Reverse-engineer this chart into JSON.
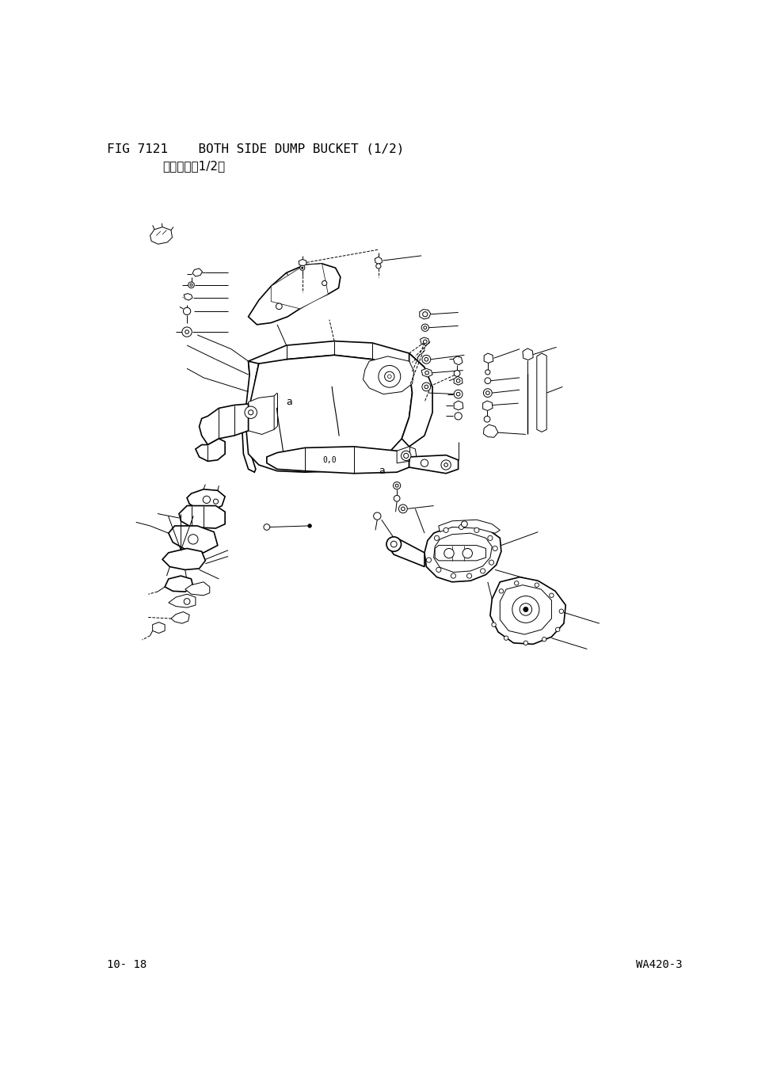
{
  "title_line1": "FIG 7121    BOTH SIDE DUMP BUCKET (1/2)",
  "title_line2": "側卉斗　（1/2）",
  "footer_left": "10- 18",
  "footer_right": "WA420-3",
  "bg_color": "#ffffff",
  "line_color": "#000000",
  "title_fontsize": 11.5,
  "subtitle_fontsize": 11,
  "footer_fontsize": 10,
  "fig_width": 9.71,
  "fig_height": 13.75,
  "dpi": 100,
  "lw_main": 1.2,
  "lw_thin": 0.7,
  "lw_leader": 0.7
}
